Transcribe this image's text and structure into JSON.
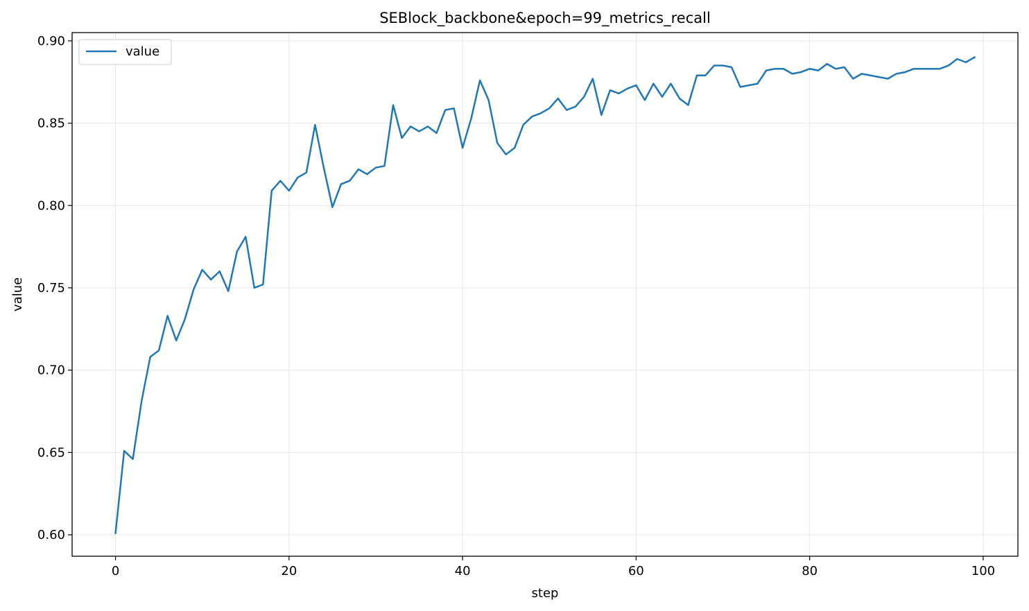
{
  "chart_data": {
    "type": "line",
    "title": "SEBlock_backbone&epoch=99_metrics_recall",
    "xlabel": "step",
    "ylabel": "value",
    "xlim": [
      -5,
      104
    ],
    "ylim": [
      0.587,
      0.905
    ],
    "x_ticks": [
      0,
      20,
      40,
      60,
      80,
      100
    ],
    "x_tick_labels": [
      "0",
      "20",
      "40",
      "60",
      "80",
      "100"
    ],
    "y_ticks": [
      0.6,
      0.65,
      0.7,
      0.75,
      0.8,
      0.85,
      0.9
    ],
    "y_tick_labels": [
      "0.60",
      "0.65",
      "0.70",
      "0.75",
      "0.80",
      "0.85",
      "0.90"
    ],
    "grid": true,
    "legend": {
      "position": "upper-left",
      "entries": [
        "value"
      ]
    },
    "series": [
      {
        "name": "value",
        "color": "#1f77b4",
        "x": [
          0,
          1,
          2,
          3,
          4,
          5,
          6,
          7,
          8,
          9,
          10,
          11,
          12,
          13,
          14,
          15,
          16,
          17,
          18,
          19,
          20,
          21,
          22,
          23,
          24,
          25,
          26,
          27,
          28,
          29,
          30,
          31,
          32,
          33,
          34,
          35,
          36,
          37,
          38,
          39,
          40,
          41,
          42,
          43,
          44,
          45,
          46,
          47,
          48,
          49,
          50,
          51,
          52,
          53,
          54,
          55,
          56,
          57,
          58,
          59,
          60,
          61,
          62,
          63,
          64,
          65,
          66,
          67,
          68,
          69,
          70,
          71,
          72,
          73,
          74,
          75,
          76,
          77,
          78,
          79,
          80,
          81,
          82,
          83,
          84,
          85,
          86,
          87,
          88,
          89,
          90,
          91,
          92,
          93,
          94,
          95,
          96,
          97,
          98,
          99
        ],
        "values": [
          0.601,
          0.651,
          0.646,
          0.681,
          0.708,
          0.712,
          0.733,
          0.718,
          0.731,
          0.749,
          0.761,
          0.755,
          0.76,
          0.748,
          0.772,
          0.781,
          0.75,
          0.752,
          0.809,
          0.815,
          0.809,
          0.817,
          0.82,
          0.849,
          0.823,
          0.799,
          0.813,
          0.815,
          0.822,
          0.819,
          0.823,
          0.824,
          0.861,
          0.841,
          0.848,
          0.845,
          0.848,
          0.844,
          0.858,
          0.859,
          0.835,
          0.853,
          0.876,
          0.864,
          0.838,
          0.831,
          0.835,
          0.849,
          0.854,
          0.856,
          0.859,
          0.865,
          0.858,
          0.86,
          0.866,
          0.877,
          0.855,
          0.87,
          0.868,
          0.871,
          0.873,
          0.864,
          0.874,
          0.866,
          0.874,
          0.865,
          0.861,
          0.879,
          0.879,
          0.885,
          0.885,
          0.884,
          0.872,
          0.873,
          0.874,
          0.882,
          0.883,
          0.883,
          0.88,
          0.881,
          0.883,
          0.882,
          0.886,
          0.883,
          0.884,
          0.877,
          0.88,
          0.879,
          0.878,
          0.877,
          0.88,
          0.881,
          0.883,
          0.883,
          0.883,
          0.883,
          0.885,
          0.889,
          0.887,
          0.89
        ]
      }
    ]
  }
}
